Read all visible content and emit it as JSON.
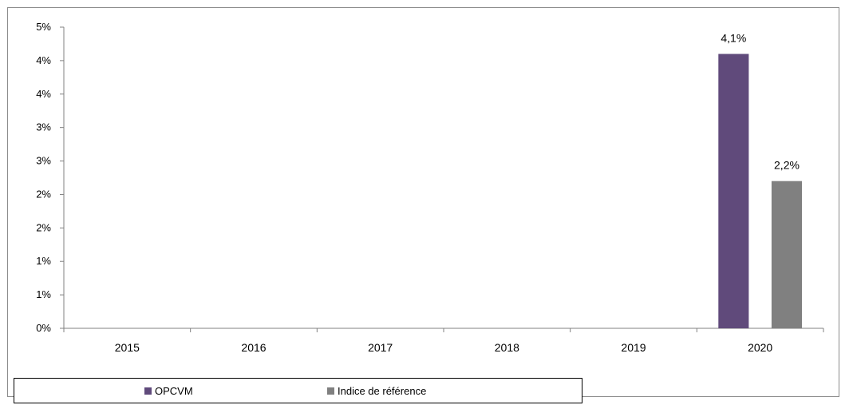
{
  "chart_data": {
    "type": "bar",
    "categories": [
      "2015",
      "2016",
      "2017",
      "2018",
      "2019",
      "2020"
    ],
    "series": [
      {
        "name": "OPCVM",
        "color": "#604a7b",
        "values": [
          null,
          null,
          null,
          null,
          null,
          4.1
        ],
        "labels": [
          "",
          "",
          "",
          "",
          "",
          "4,1%"
        ]
      },
      {
        "name": "Indice de référence",
        "color": "#808080",
        "values": [
          null,
          null,
          null,
          null,
          null,
          2.2
        ],
        "labels": [
          "",
          "",
          "",
          "",
          "",
          "2,2%"
        ]
      }
    ],
    "ylim": [
      0,
      4.5
    ],
    "yticks": [
      {
        "value": 0.0,
        "label": "0%"
      },
      {
        "value": 0.5,
        "label": "1%"
      },
      {
        "value": 1.0,
        "label": "1%"
      },
      {
        "value": 1.5,
        "label": "2%"
      },
      {
        "value": 2.0,
        "label": "2%"
      },
      {
        "value": 2.5,
        "label": "3%"
      },
      {
        "value": 3.0,
        "label": "3%"
      },
      {
        "value": 3.5,
        "label": "4%"
      },
      {
        "value": 4.0,
        "label": "4%"
      },
      {
        "value": 4.5,
        "label": "5%"
      }
    ],
    "title": "",
    "xlabel": "",
    "ylabel": "",
    "grid": false,
    "legend_position": "bottom-left"
  }
}
